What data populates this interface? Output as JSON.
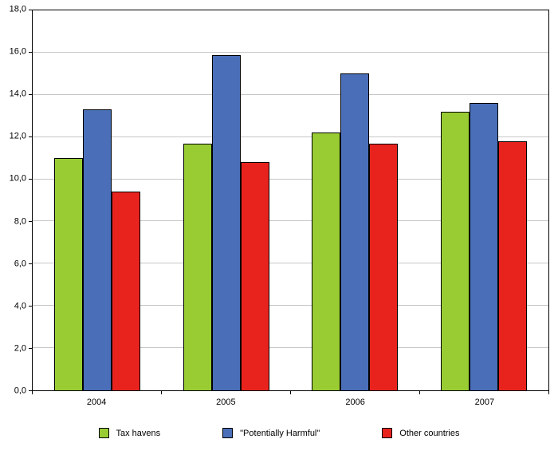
{
  "chart_data": {
    "type": "bar",
    "title": "",
    "xlabel": "",
    "ylabel": "",
    "categories": [
      "2004",
      "2005",
      "2006",
      "2007"
    ],
    "series": [
      {
        "name": "Tax havens",
        "color": "#99cc33",
        "values": [
          11.0,
          11.7,
          12.2,
          13.2
        ]
      },
      {
        "name": "\"Potentially Harmful\"",
        "color": "#4a6fb8",
        "values": [
          13.3,
          15.9,
          15.0,
          13.6
        ]
      },
      {
        "name": "Other countries",
        "color": "#e8231e",
        "values": [
          9.4,
          10.8,
          11.7,
          11.8
        ]
      }
    ],
    "ylim": [
      0,
      18
    ],
    "ytick_step": 2,
    "ytick_labels": [
      "0,0",
      "2,0",
      "4,0",
      "6,0",
      "8,0",
      "10,0",
      "12,0",
      "14,0",
      "16,0",
      "18,0"
    ],
    "grid": true,
    "gridline_color": "#c6c6c6",
    "legend_position": "bottom"
  }
}
